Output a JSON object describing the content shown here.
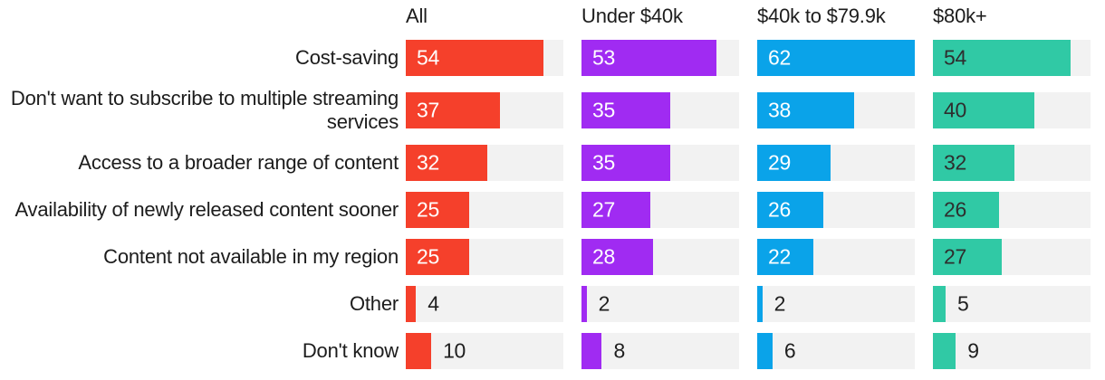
{
  "chart_data": {
    "type": "bar",
    "title": "",
    "orientation": "horizontal",
    "grid": false,
    "legend_position": "column-headers-top",
    "categories": [
      "Cost-saving",
      "Don't want to subscribe to multiple streaming services",
      "Access to a broader range of content",
      "Availability of newly released content sooner",
      "Content not available in my region",
      "Other",
      "Don't know"
    ],
    "series": [
      {
        "name": "All",
        "color": "#F5402B",
        "value_label_color": "#ffffff",
        "values": [
          54,
          37,
          32,
          25,
          25,
          4,
          10
        ]
      },
      {
        "name": "Under $40k",
        "color": "#A02BF2",
        "value_label_color": "#ffffff",
        "values": [
          53,
          35,
          35,
          27,
          28,
          2,
          8
        ]
      },
      {
        "name": "$40k to $79.9k",
        "color": "#0AA3E9",
        "value_label_color": "#ffffff",
        "values": [
          62,
          38,
          29,
          26,
          22,
          2,
          6
        ]
      },
      {
        "name": "$80k+",
        "color": "#30C9A5",
        "value_label_color": "#2e2e2e",
        "values": [
          54,
          40,
          32,
          26,
          27,
          5,
          9
        ]
      }
    ],
    "scale_max": 62,
    "xlim": [
      0,
      62
    ],
    "track_color": "#F2F2F2",
    "outside_value_threshold": 12,
    "outside_value_color": "#1f1f1f",
    "text_color": "#1c1c1c",
    "background_color": "#ffffff"
  }
}
